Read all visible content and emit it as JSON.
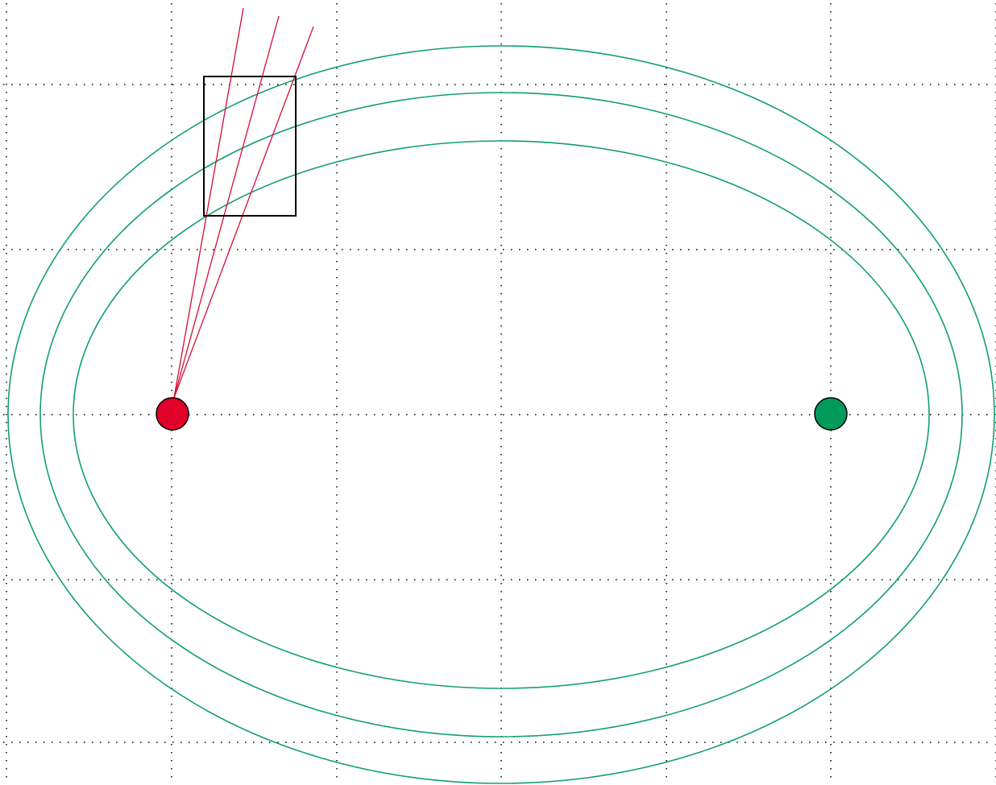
{
  "diagram": {
    "colors": {
      "grid": "#000000",
      "ellipse": "#139e72",
      "ray": "#d90b36",
      "box": "#000000",
      "focus_left": "#e0002a",
      "focus_right": "#009a5a"
    },
    "ellipses": [
      {
        "semi_major": 612,
        "semi_minor": 458
      },
      {
        "semi_major": 572,
        "semi_minor": 400
      },
      {
        "semi_major": 531,
        "semi_minor": 340
      }
    ],
    "focus_count": 2,
    "ray_count": 3,
    "grid": "dotted",
    "box_count": 1
  }
}
